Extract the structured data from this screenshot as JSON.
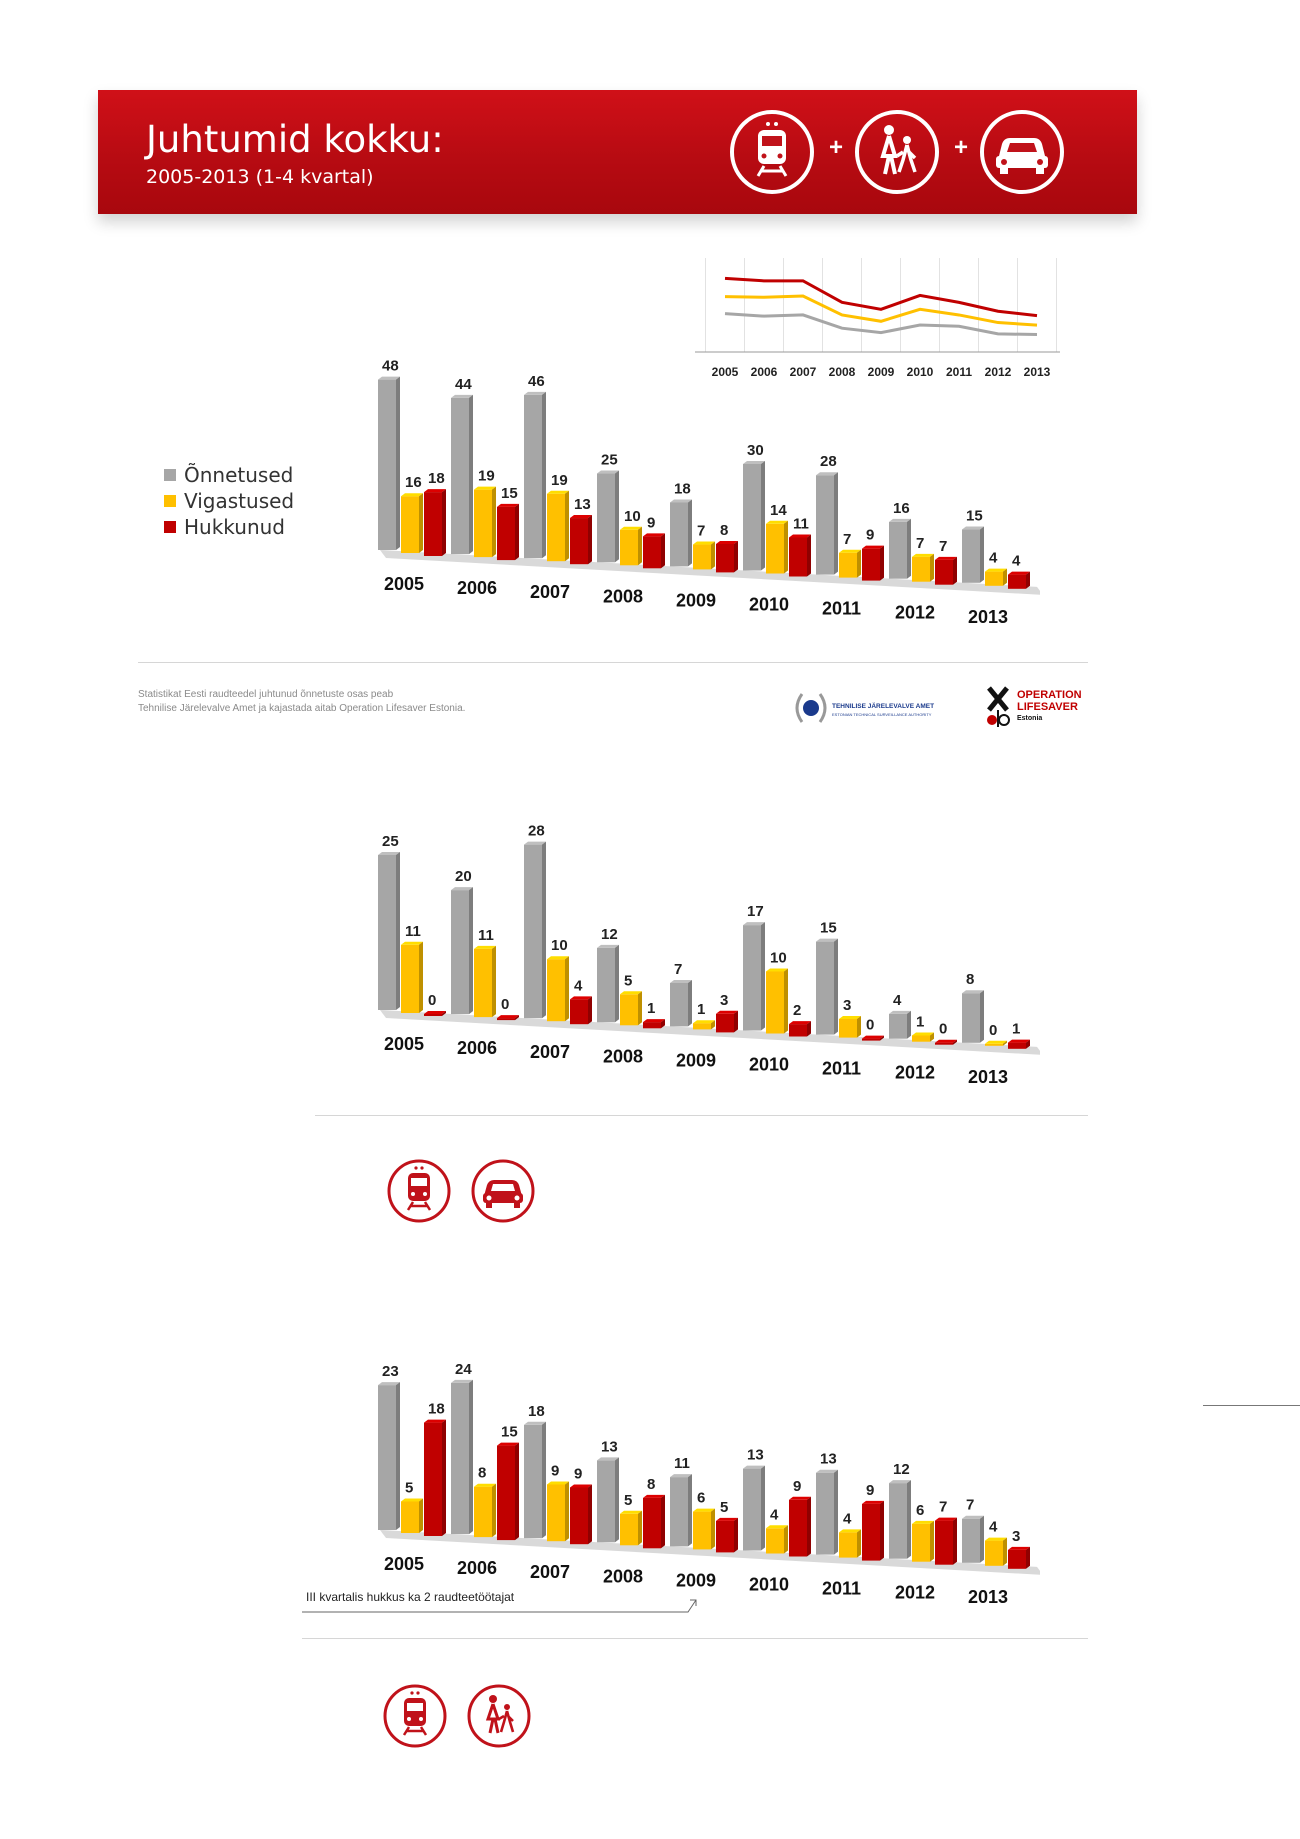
{
  "header": {
    "title": "Juhtumid kokku:",
    "subtitle": "2005-2013 (1-4 kvartal)",
    "plus": "+"
  },
  "legend": {
    "items": [
      {
        "label": "Õnnetused",
        "color": "#a6a6a6"
      },
      {
        "label": "Vigastused",
        "color": "#ffc000"
      },
      {
        "label": "Hukkunud",
        "color": "#c00000"
      }
    ]
  },
  "footer": {
    "note_line1": "Statistikat Eesti raudteedel juhtunud õnnetuste osas peab",
    "note_line2": "Tehnilise Järelevalve Amet ja kajastada aitab Operation Lifesaver Estonia.",
    "tja_name": "TEHNILISE JÄRELEVALVE AMET",
    "tja_name_en": "ESTONIAN TECHNICAL SURVEILLANCE AUTHORITY",
    "ol_line1": "OPERATION",
    "ol_line2": "LIFESAVER",
    "ol_line3": "Estonia"
  },
  "annotation": {
    "kvartal_note": "III kvartalis hukkus ka 2 raudteetöötajat"
  },
  "colors": {
    "gray": "#a6a6a6",
    "yellow": "#ffc000",
    "red": "#c00000",
    "brand_red": "#c0121a"
  },
  "chart_data": [
    {
      "type": "bar",
      "categories": [
        "2005",
        "2006",
        "2007",
        "2008",
        "2009",
        "2010",
        "2011",
        "2012",
        "2013"
      ],
      "series": [
        {
          "name": "Õnnetused",
          "values": [
            48,
            44,
            46,
            25,
            18,
            30,
            28,
            16,
            15
          ]
        },
        {
          "name": "Vigastused",
          "values": [
            16,
            19,
            19,
            10,
            7,
            14,
            7,
            7,
            4
          ]
        },
        {
          "name": "Hukkunud",
          "values": [
            18,
            15,
            13,
            9,
            8,
            11,
            9,
            7,
            4
          ]
        }
      ]
    },
    {
      "type": "line",
      "categories": [
        "2005",
        "2006",
        "2007",
        "2008",
        "2009",
        "2010",
        "2011",
        "2012",
        "2013"
      ],
      "series": [
        {
          "values": [
            48,
            44,
            46,
            25,
            18,
            30,
            28,
            16,
            15
          ]
        },
        {
          "values": [
            16,
            19,
            19,
            10,
            7,
            14,
            7,
            7,
            4
          ]
        },
        {
          "values": [
            18,
            15,
            13,
            9,
            8,
            11,
            9,
            7,
            4
          ]
        }
      ]
    },
    {
      "type": "bar",
      "categories": [
        "2005",
        "2006",
        "2007",
        "2008",
        "2009",
        "2010",
        "2011",
        "2012",
        "2013"
      ],
      "series": [
        {
          "values": [
            25,
            20,
            28,
            12,
            7,
            17,
            15,
            4,
            8
          ]
        },
        {
          "values": [
            11,
            11,
            10,
            5,
            1,
            10,
            3,
            1,
            0
          ]
        },
        {
          "values": [
            0,
            0,
            4,
            1,
            3,
            2,
            0,
            0,
            1
          ]
        }
      ]
    },
    {
      "type": "bar",
      "categories": [
        "2005",
        "2006",
        "2007",
        "2008",
        "2009",
        "2010",
        "2011",
        "2012",
        "2013"
      ],
      "series": [
        {
          "values": [
            23,
            24,
            18,
            13,
            11,
            13,
            13,
            12,
            7
          ]
        },
        {
          "values": [
            5,
            8,
            9,
            5,
            6,
            4,
            4,
            6,
            4
          ]
        },
        {
          "values": [
            18,
            15,
            9,
            8,
            5,
            9,
            9,
            7,
            3
          ]
        }
      ]
    }
  ]
}
